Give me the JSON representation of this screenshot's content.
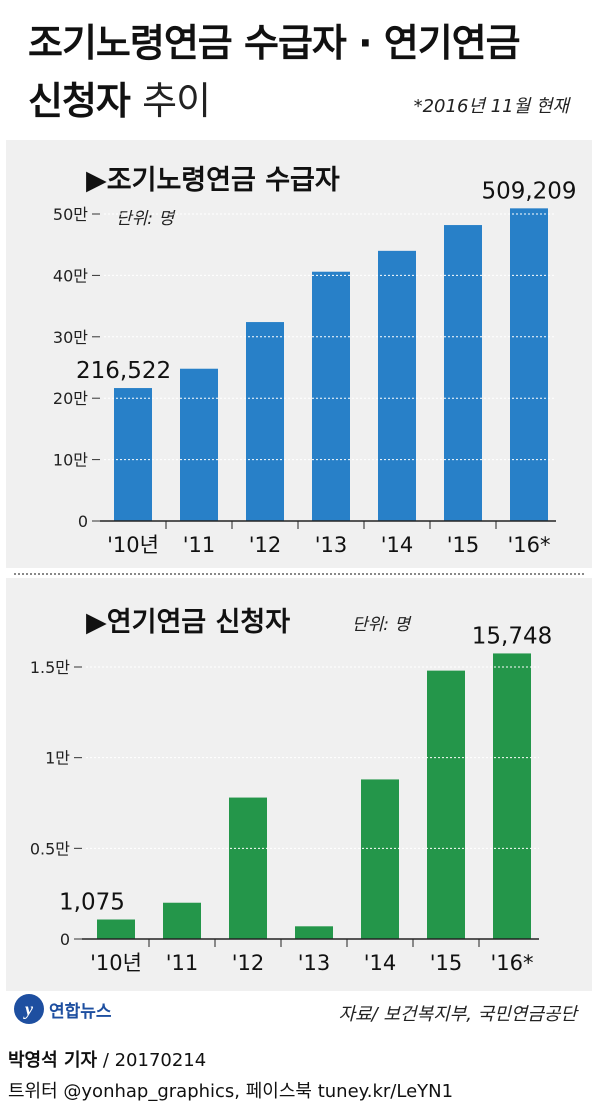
{
  "title": {
    "line1": "조기노령연금 수급자 · 연기연금",
    "line2_bold": "신청자",
    "line2_light": "추이",
    "note": "*2016년 11월 현재"
  },
  "colors": {
    "top_bar": "#2880c8",
    "bottom_bar": "#24964a",
    "panel": "#f0f0f0"
  },
  "footer": {
    "logo_text": "연합뉴스",
    "source": "자료/ 보건복지부, 국민연금공단",
    "reporter": "박영석 기자",
    "date": "/ 20170214",
    "social": "트위터 @yonhap_graphics, 페이스북 tuney.kr/LeYN1"
  },
  "chart_data": [
    {
      "type": "bar",
      "title": "▶조기노령연금 수급자",
      "unit": "단위: 명",
      "categories": [
        "'10년",
        "'11",
        "'12",
        "'13",
        "'14",
        "'15",
        "'16*"
      ],
      "values": [
        216522,
        248000,
        324000,
        406000,
        440000,
        482000,
        509209
      ],
      "ytick_labels": [
        "0",
        "10만",
        "20만",
        "30만",
        "40만",
        "50만"
      ],
      "yticks": [
        0,
        100000,
        200000,
        300000,
        400000,
        500000
      ],
      "ylim": [
        0,
        500000
      ],
      "labeled": {
        "0": "216,522",
        "6": "509,209"
      }
    },
    {
      "type": "bar",
      "title": "▶연기연금 신청자",
      "unit": "단위: 명",
      "categories": [
        "'10년",
        "'11",
        "'12",
        "'13",
        "'14",
        "'15",
        "'16*"
      ],
      "values": [
        1075,
        2000,
        7800,
        700,
        8800,
        14800,
        15748
      ],
      "ytick_labels": [
        "0",
        "0.5만",
        "1만",
        "1.5만"
      ],
      "yticks": [
        0,
        5000,
        10000,
        15000
      ],
      "ylim": [
        0,
        15000
      ],
      "labeled": {
        "0": "1,075",
        "6": "15,748"
      }
    }
  ]
}
